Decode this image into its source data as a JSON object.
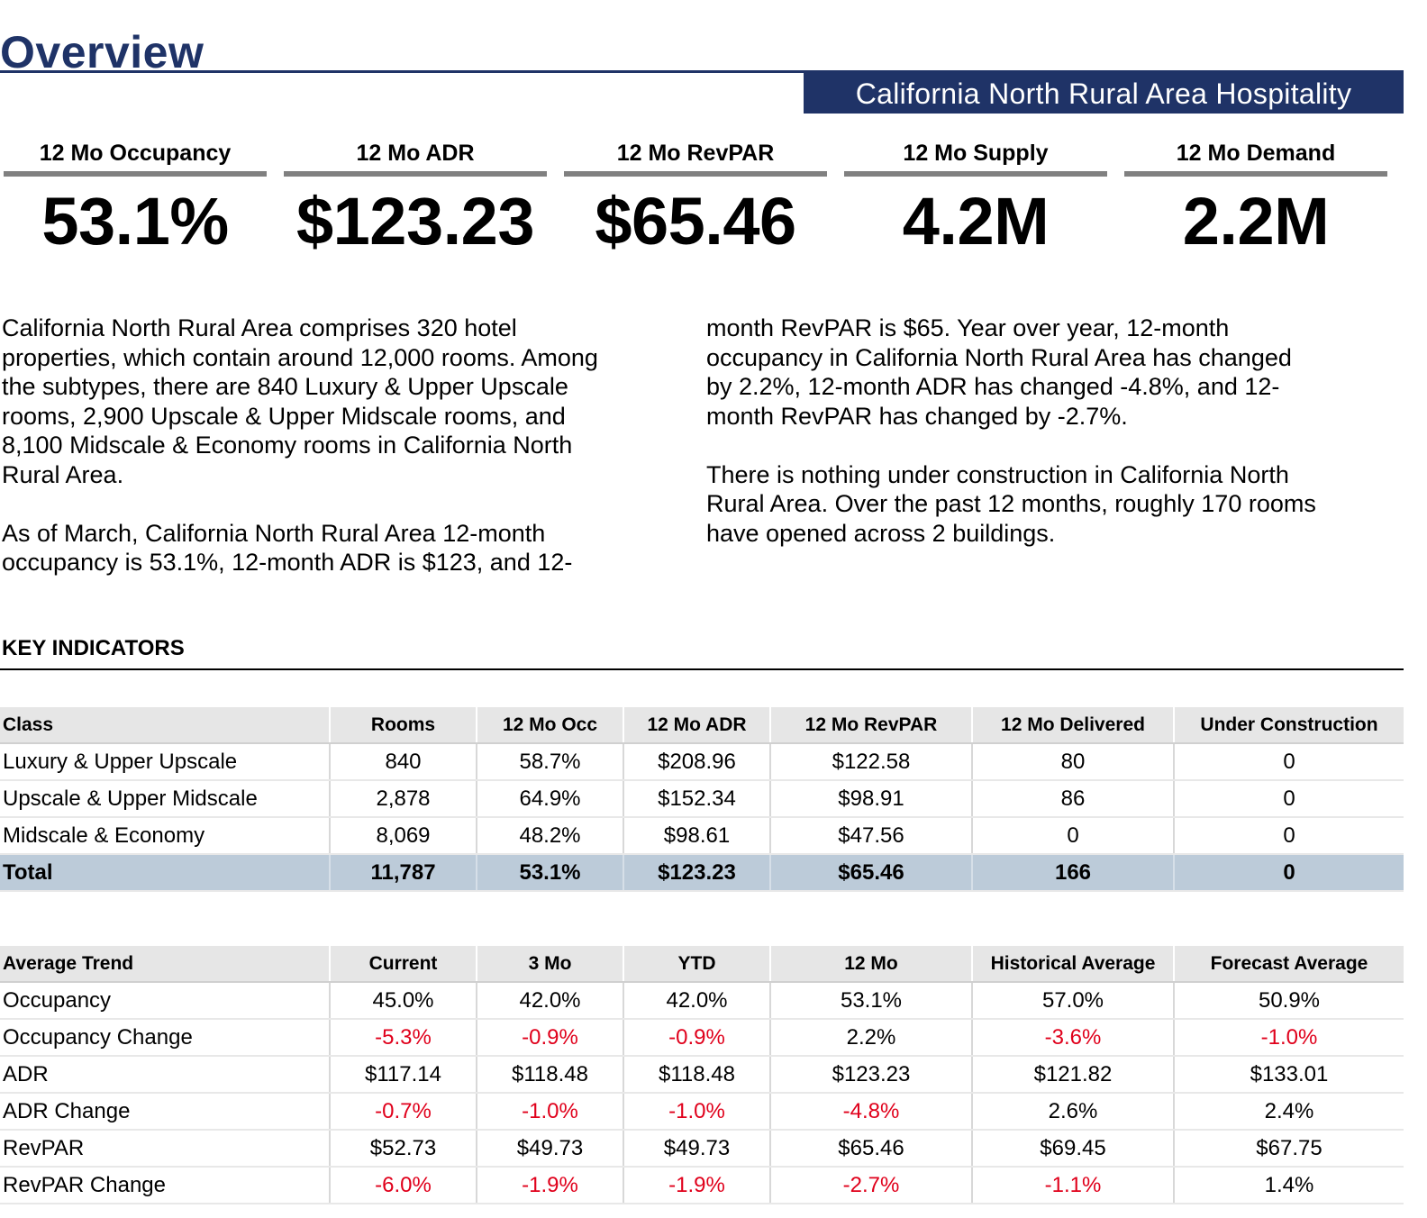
{
  "page": {
    "title": "Overview",
    "banner": "California North Rural Area Hospitality"
  },
  "kpis": [
    {
      "label": "12 Mo Occupancy",
      "value": "53.1%"
    },
    {
      "label": "12 Mo ADR",
      "value": "$123.23"
    },
    {
      "label": "12 Mo RevPAR",
      "value": "$65.46"
    },
    {
      "label": "12 Mo Supply",
      "value": "4.2M"
    },
    {
      "label": "12 Mo Demand",
      "value": "2.2M"
    }
  ],
  "summary": {
    "col1_line1": "California North Rural Area comprises 320 hotel",
    "col1_line2": "properties, which contain around 12,000 rooms. Among",
    "col1_line3": "the subtypes, there are 840 Luxury & Upper Upscale",
    "col1_line4": "rooms, 2,900 Upscale & Upper Midscale rooms, and",
    "col1_line5": "8,100 Midscale & Economy rooms in California North",
    "col1_line6": "Rural Area.",
    "col1_line7": "As of March, California North Rural Area 12-month",
    "col1_line8": "occupancy is 53.1%, 12-month ADR is $123, and 12-",
    "col2_line1": "month RevPAR is $65. Year over year, 12-month",
    "col2_line2": "occupancy in California North Rural Area has changed",
    "col2_line3": "by 2.2%, 12-month ADR has changed -4.8%, and 12-",
    "col2_line4": "month RevPAR has changed by -2.7%.",
    "col2_line5": "There is nothing under construction in California North",
    "col2_line6": "Rural Area. Over the past 12 months, roughly 170 rooms",
    "col2_line7": "have opened across 2 buildings."
  },
  "key_indicators": {
    "title": "KEY INDICATORS",
    "headers": [
      "Class",
      "Rooms",
      "12 Mo Occ",
      "12 Mo ADR",
      "12 Mo RevPAR",
      "12 Mo Delivered",
      "Under Construction"
    ],
    "rows": [
      [
        "Luxury & Upper Upscale",
        "840",
        "58.7%",
        "$208.96",
        "$122.58",
        "80",
        "0"
      ],
      [
        "Upscale & Upper Midscale",
        "2,878",
        "64.9%",
        "$152.34",
        "$98.91",
        "86",
        "0"
      ],
      [
        "Midscale & Economy",
        "8,069",
        "48.2%",
        "$98.61",
        "$47.56",
        "0",
        "0"
      ]
    ],
    "total": [
      "Total",
      "11,787",
      "53.1%",
      "$123.23",
      "$65.46",
      "166",
      "0"
    ]
  },
  "average_trend": {
    "headers": [
      "Average Trend",
      "Current",
      "3 Mo",
      "YTD",
      "12 Mo",
      "Historical Average",
      "Forecast Average"
    ],
    "rows": [
      [
        "Occupancy",
        "45.0%",
        "42.0%",
        "42.0%",
        "53.1%",
        "57.0%",
        "50.9%"
      ],
      [
        "Occupancy Change",
        "-5.3%",
        "-0.9%",
        "-0.9%",
        "2.2%",
        "-3.6%",
        "-1.0%"
      ],
      [
        "ADR",
        "$117.14",
        "$118.48",
        "$118.48",
        "$123.23",
        "$121.82",
        "$133.01"
      ],
      [
        "ADR Change",
        "-0.7%",
        "-1.0%",
        "-1.0%",
        "-4.8%",
        "2.6%",
        "2.4%"
      ],
      [
        "RevPAR",
        "$52.73",
        "$49.73",
        "$49.73",
        "$65.46",
        "$69.45",
        "$67.75"
      ],
      [
        "RevPAR Change",
        "-6.0%",
        "-1.9%",
        "-1.9%",
        "-2.7%",
        "-1.1%",
        "1.4%"
      ]
    ]
  },
  "colors": {
    "brand_navy": "#1f3367",
    "negative_red": "#e0001b",
    "total_row": "#bccbd9",
    "header_gray": "#e6e6e6"
  }
}
